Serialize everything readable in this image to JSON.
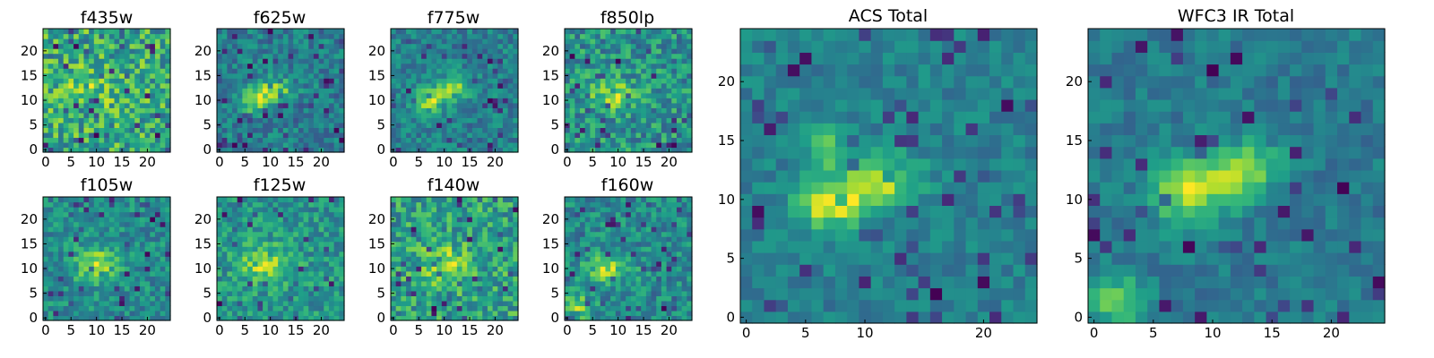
{
  "figure": {
    "description_note": "Grid of 2D intensity maps",
    "colormap": "viridis"
  },
  "chart_data": [
    {
      "type": "heatmap",
      "title": "f435w",
      "grid": [
        25,
        25
      ],
      "xlim": [
        0,
        24
      ],
      "ylim": [
        0,
        24
      ],
      "xticks": [
        0,
        5,
        10,
        15,
        20
      ],
      "yticks": [
        0,
        5,
        10,
        15,
        20
      ],
      "seed": 11,
      "noise": 0.9,
      "blobs": [
        {
          "cx": 9,
          "cy": 13,
          "sx": 4,
          "sy": 3,
          "a": 0.25
        }
      ],
      "holes": 0.1
    },
    {
      "type": "heatmap",
      "title": "f625w",
      "grid": [
        25,
        25
      ],
      "xlim": [
        0,
        24
      ],
      "ylim": [
        0,
        24
      ],
      "xticks": [
        0,
        5,
        10,
        15,
        20
      ],
      "yticks": [
        0,
        5,
        10,
        15,
        20
      ],
      "seed": 23,
      "noise": 0.65,
      "blobs": [
        {
          "cx": 7,
          "cy": 10,
          "sx": 2.2,
          "sy": 1.6,
          "a": 0.9
        },
        {
          "cx": 11,
          "cy": 12.5,
          "sx": 2.6,
          "sy": 1.5,
          "a": 0.8
        }
      ],
      "holes": 0.1
    },
    {
      "type": "heatmap",
      "title": "f775w",
      "grid": [
        25,
        25
      ],
      "xlim": [
        0,
        24
      ],
      "ylim": [
        0,
        24
      ],
      "xticks": [
        0,
        5,
        10,
        15,
        20
      ],
      "yticks": [
        0,
        5,
        10,
        15,
        20
      ],
      "seed": 37,
      "noise": 0.6,
      "blobs": [
        {
          "cx": 7,
          "cy": 10,
          "sx": 2.2,
          "sy": 1.6,
          "a": 0.9
        },
        {
          "cx": 12,
          "cy": 12.5,
          "sx": 2.4,
          "sy": 1.6,
          "a": 0.8
        }
      ],
      "holes": 0.08
    },
    {
      "type": "heatmap",
      "title": "f850lp",
      "grid": [
        25,
        25
      ],
      "xlim": [
        0,
        24
      ],
      "ylim": [
        0,
        24
      ],
      "xticks": [
        0,
        5,
        10,
        15,
        20
      ],
      "yticks": [
        0,
        5,
        10,
        15,
        20
      ],
      "seed": 51,
      "noise": 0.75,
      "blobs": [
        {
          "cx": 9,
          "cy": 11,
          "sx": 3,
          "sy": 2,
          "a": 0.6
        }
      ],
      "holes": 0.08
    },
    {
      "type": "heatmap",
      "title": "f105w",
      "grid": [
        25,
        25
      ],
      "xlim": [
        0,
        24
      ],
      "ylim": [
        0,
        24
      ],
      "xticks": [
        0,
        5,
        10,
        15,
        20
      ],
      "yticks": [
        0,
        5,
        10,
        15,
        20
      ],
      "seed": 63,
      "noise": 0.6,
      "blobs": [
        {
          "cx": 10,
          "cy": 11,
          "sx": 3,
          "sy": 2.5,
          "a": 0.7
        }
      ],
      "holes": 0.06
    },
    {
      "type": "heatmap",
      "title": "f125w",
      "grid": [
        25,
        25
      ],
      "xlim": [
        0,
        24
      ],
      "ylim": [
        0,
        24
      ],
      "xticks": [
        0,
        5,
        10,
        15,
        20
      ],
      "yticks": [
        0,
        5,
        10,
        15,
        20
      ],
      "seed": 77,
      "noise": 0.6,
      "blobs": [
        {
          "cx": 9,
          "cy": 11,
          "sx": 3.5,
          "sy": 2.5,
          "a": 0.6
        }
      ],
      "holes": 0.07
    },
    {
      "type": "heatmap",
      "title": "f140w",
      "grid": [
        25,
        25
      ],
      "xlim": [
        0,
        24
      ],
      "ylim": [
        0,
        24
      ],
      "xticks": [
        0,
        5,
        10,
        15,
        20
      ],
      "yticks": [
        0,
        5,
        10,
        15,
        20
      ],
      "seed": 89,
      "noise": 0.7,
      "blobs": [
        {
          "cx": 10,
          "cy": 11,
          "sx": 3,
          "sy": 2.5,
          "a": 0.5
        }
      ],
      "holes": 0.08
    },
    {
      "type": "heatmap",
      "title": "f160w",
      "grid": [
        25,
        25
      ],
      "xlim": [
        0,
        24
      ],
      "ylim": [
        0,
        24
      ],
      "xticks": [
        0,
        5,
        10,
        15,
        20
      ],
      "yticks": [
        0,
        5,
        10,
        15,
        20
      ],
      "seed": 97,
      "noise": 0.6,
      "blobs": [
        {
          "cx": 8,
          "cy": 10,
          "sx": 3,
          "sy": 2,
          "a": 0.7
        },
        {
          "cx": 2,
          "cy": 2,
          "sx": 2,
          "sy": 2,
          "a": 0.6
        }
      ],
      "holes": 0.08
    },
    {
      "type": "heatmap",
      "title": "ACS Total",
      "grid": [
        25,
        25
      ],
      "xlim": [
        0,
        24
      ],
      "ylim": [
        0,
        24
      ],
      "xticks": [
        0,
        5,
        10,
        20
      ],
      "yticks": [
        0,
        5,
        10,
        15,
        20
      ],
      "seed": 131,
      "noise": 0.4,
      "blobs": [
        {
          "cx": 7,
          "cy": 9.5,
          "sx": 1.8,
          "sy": 1.3,
          "a": 1.0
        },
        {
          "cx": 11,
          "cy": 11.5,
          "sx": 2.2,
          "sy": 1.6,
          "a": 0.9
        },
        {
          "cx": 6.5,
          "cy": 14.5,
          "sx": 1.2,
          "sy": 1.5,
          "a": 0.6
        }
      ],
      "holes": 0.07
    },
    {
      "type": "heatmap",
      "title": "WFC3 IR Total",
      "grid": [
        25,
        25
      ],
      "xlim": [
        0,
        24
      ],
      "ylim": [
        0,
        24
      ],
      "xticks": [
        0,
        5,
        10,
        15,
        20
      ],
      "yticks": [
        0,
        5,
        10,
        15,
        20
      ],
      "seed": 173,
      "noise": 0.4,
      "blobs": [
        {
          "cx": 8,
          "cy": 10.5,
          "sx": 2.2,
          "sy": 1.8,
          "a": 0.9
        },
        {
          "cx": 12.5,
          "cy": 12.5,
          "sx": 2.2,
          "sy": 1.6,
          "a": 0.85
        },
        {
          "cx": 2,
          "cy": 1.5,
          "sx": 1.6,
          "sy": 1.3,
          "a": 0.8
        }
      ],
      "holes": 0.07
    }
  ]
}
